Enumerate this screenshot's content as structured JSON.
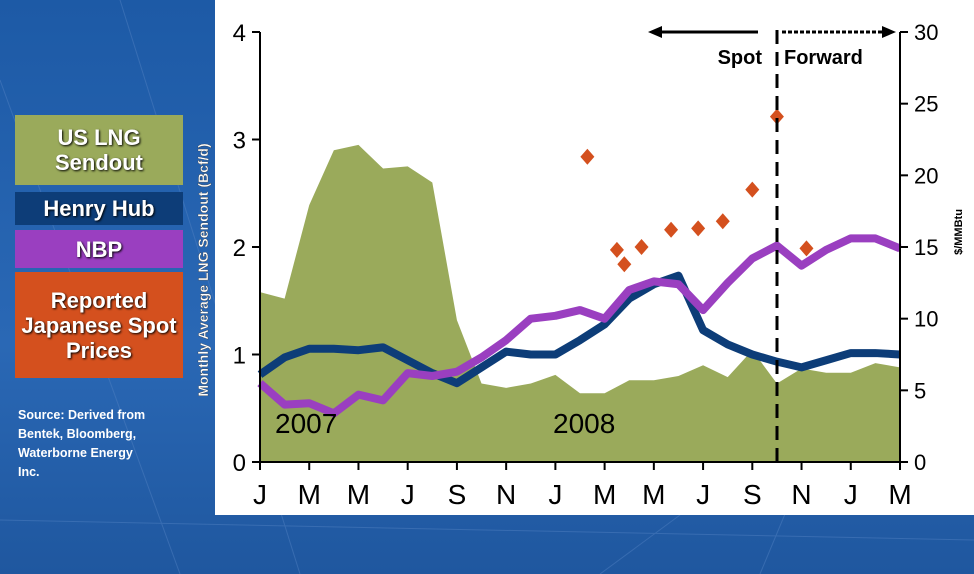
{
  "chart_data": {
    "type": "line",
    "ylabel": "Monthly Average LNG Sendout (Bcf/d)",
    "y2label": "$/MMBtu",
    "source": "Source: Derived from Bentek, Bloomberg, Waterborne Energy Inc.",
    "annotations": [
      "2007",
      "2008",
      "Spot",
      "Forward"
    ],
    "x": [
      0,
      1,
      2,
      3,
      4,
      5,
      6,
      7,
      8,
      9,
      10,
      11,
      12,
      13,
      14,
      15,
      16,
      17,
      18,
      19,
      20,
      21,
      22,
      23,
      24,
      25,
      26
    ],
    "xlim": [
      0,
      26
    ],
    "xticks": [
      {
        "value": 0,
        "label": "J"
      },
      {
        "value": 2,
        "label": "M"
      },
      {
        "value": 4,
        "label": "M"
      },
      {
        "value": 6,
        "label": "J"
      },
      {
        "value": 8,
        "label": "S"
      },
      {
        "value": 10,
        "label": "N"
      },
      {
        "value": 12,
        "label": "J"
      },
      {
        "value": 14,
        "label": "M"
      },
      {
        "value": 16,
        "label": "M"
      },
      {
        "value": 18,
        "label": "J"
      },
      {
        "value": 20,
        "label": "S"
      },
      {
        "value": 22,
        "label": "N"
      },
      {
        "value": 24,
        "label": "J"
      },
      {
        "value": 26,
        "label": "M"
      }
    ],
    "ylim": [
      0,
      4
    ],
    "yticks": [
      0,
      1,
      2,
      3,
      4
    ],
    "y2lim": [
      0,
      30
    ],
    "y2ticks": [
      0,
      5,
      10,
      15,
      20,
      25,
      30
    ],
    "series": [
      {
        "name": "US LNG Sendout",
        "type": "area",
        "color": "#9aaa5b",
        "values": [
          1.58,
          1.52,
          2.39,
          2.9,
          2.95,
          2.73,
          2.75,
          2.6,
          1.32,
          0.73,
          0.69,
          0.73,
          0.81,
          0.64,
          0.64,
          0.76,
          0.76,
          0.8,
          0.9,
          0.79,
          1.04,
          0.73,
          0.87,
          0.83,
          0.83,
          0.92,
          0.88
        ]
      },
      {
        "name": "Henry Hub",
        "type": "line",
        "axis": "y2",
        "color": "#0d3d78",
        "values": [
          6.1,
          7.3,
          7.9,
          7.9,
          7.8,
          8.0,
          7.1,
          6.2,
          5.5,
          6.6,
          7.7,
          7.5,
          7.5,
          8.5,
          9.6,
          11.4,
          12.4,
          13.0,
          9.2,
          8.2,
          7.5,
          7.0,
          6.6,
          7.1,
          7.6,
          7.6,
          7.5
        ]
      },
      {
        "name": "NBP",
        "type": "line",
        "axis": "y2",
        "color": "#9a3fc0",
        "values": [
          5.5,
          4.0,
          4.1,
          3.4,
          4.7,
          4.3,
          6.2,
          6.0,
          6.3,
          7.3,
          8.5,
          10.0,
          10.2,
          10.6,
          10.0,
          12.0,
          12.6,
          12.4,
          10.6,
          12.5,
          14.2,
          15.1,
          13.7,
          14.8,
          15.6,
          15.6,
          14.9
        ]
      },
      {
        "name": "Reported Japanese Spot Prices",
        "type": "scatter",
        "axis": "y2",
        "color": "#d4501e",
        "x": [
          13.3,
          14.5,
          14.8,
          15.5,
          16.7,
          17.8,
          18.8,
          20.0,
          21.0,
          22.2
        ],
        "values": [
          21.3,
          14.8,
          13.8,
          15.0,
          16.2,
          16.3,
          16.8,
          19.0,
          24.1,
          14.9
        ]
      }
    ]
  }
}
